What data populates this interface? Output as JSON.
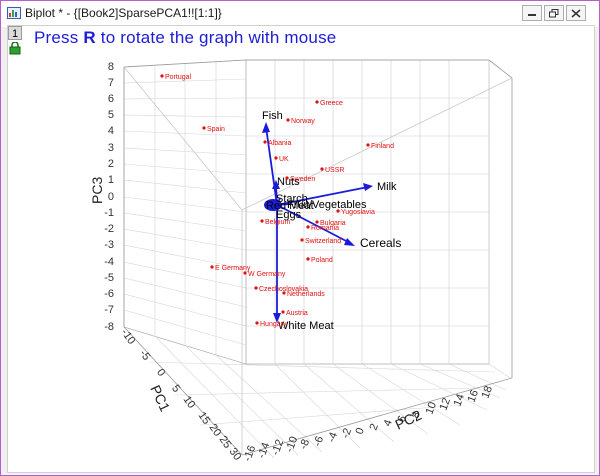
{
  "window": {
    "title": "Biplot * - {[Book2]SparsePCA1!![1:1]}",
    "layer_number": "1"
  },
  "instruction": {
    "prefix": "Press ",
    "key": "R",
    "suffix": " to rotate the graph with mouse"
  },
  "colors": {
    "accent": "#1c1cd8",
    "observation": "#e01010",
    "vector": "#1c1cd8",
    "window_border": "#b45fd0"
  },
  "chart_data": {
    "type": "scatter",
    "subtype": "3d-biplot",
    "xlabel": "PC1",
    "ylabel": "PC2",
    "zlabel": "PC3",
    "pc3_ticks": [
      "8",
      "7",
      "6",
      "5",
      "4",
      "3",
      "2",
      "1",
      "0",
      "-1",
      "-2",
      "-3",
      "-4",
      "-5",
      "-6",
      "-7",
      "-8"
    ],
    "pc1_ticks": [
      "-10",
      "-5",
      "0",
      "5",
      "10",
      "15",
      "20",
      "25",
      "30"
    ],
    "pc2_ticks": [
      "-16",
      "-14",
      "-12",
      "-10",
      "-8",
      "-6",
      "-4",
      "-2",
      "0",
      "2",
      "4",
      "6",
      "8",
      "10",
      "12",
      "14",
      "16",
      "18"
    ],
    "grid": true,
    "observations": [
      "Portugal",
      "Greece",
      "Spain",
      "Norway",
      "Albania",
      "Finland",
      "UK",
      "USSR",
      "Sweden",
      "Yugoslavia",
      "Bulgaria",
      "Belgium",
      "Romania",
      "Switzerland",
      "Poland",
      "E Germany",
      "W Germany",
      "Czechoslovakia",
      "Netherlands",
      "Austria",
      "Hungary"
    ],
    "variables": [
      {
        "name": "Fish"
      },
      {
        "name": "Nuts"
      },
      {
        "name": "Milk"
      },
      {
        "name": "Cereals"
      },
      {
        "name": "Fruit/Vegetables"
      },
      {
        "name": "Eggs"
      },
      {
        "name": "Red Meat"
      },
      {
        "name": "Starch"
      },
      {
        "name": "White Meat"
      }
    ]
  }
}
